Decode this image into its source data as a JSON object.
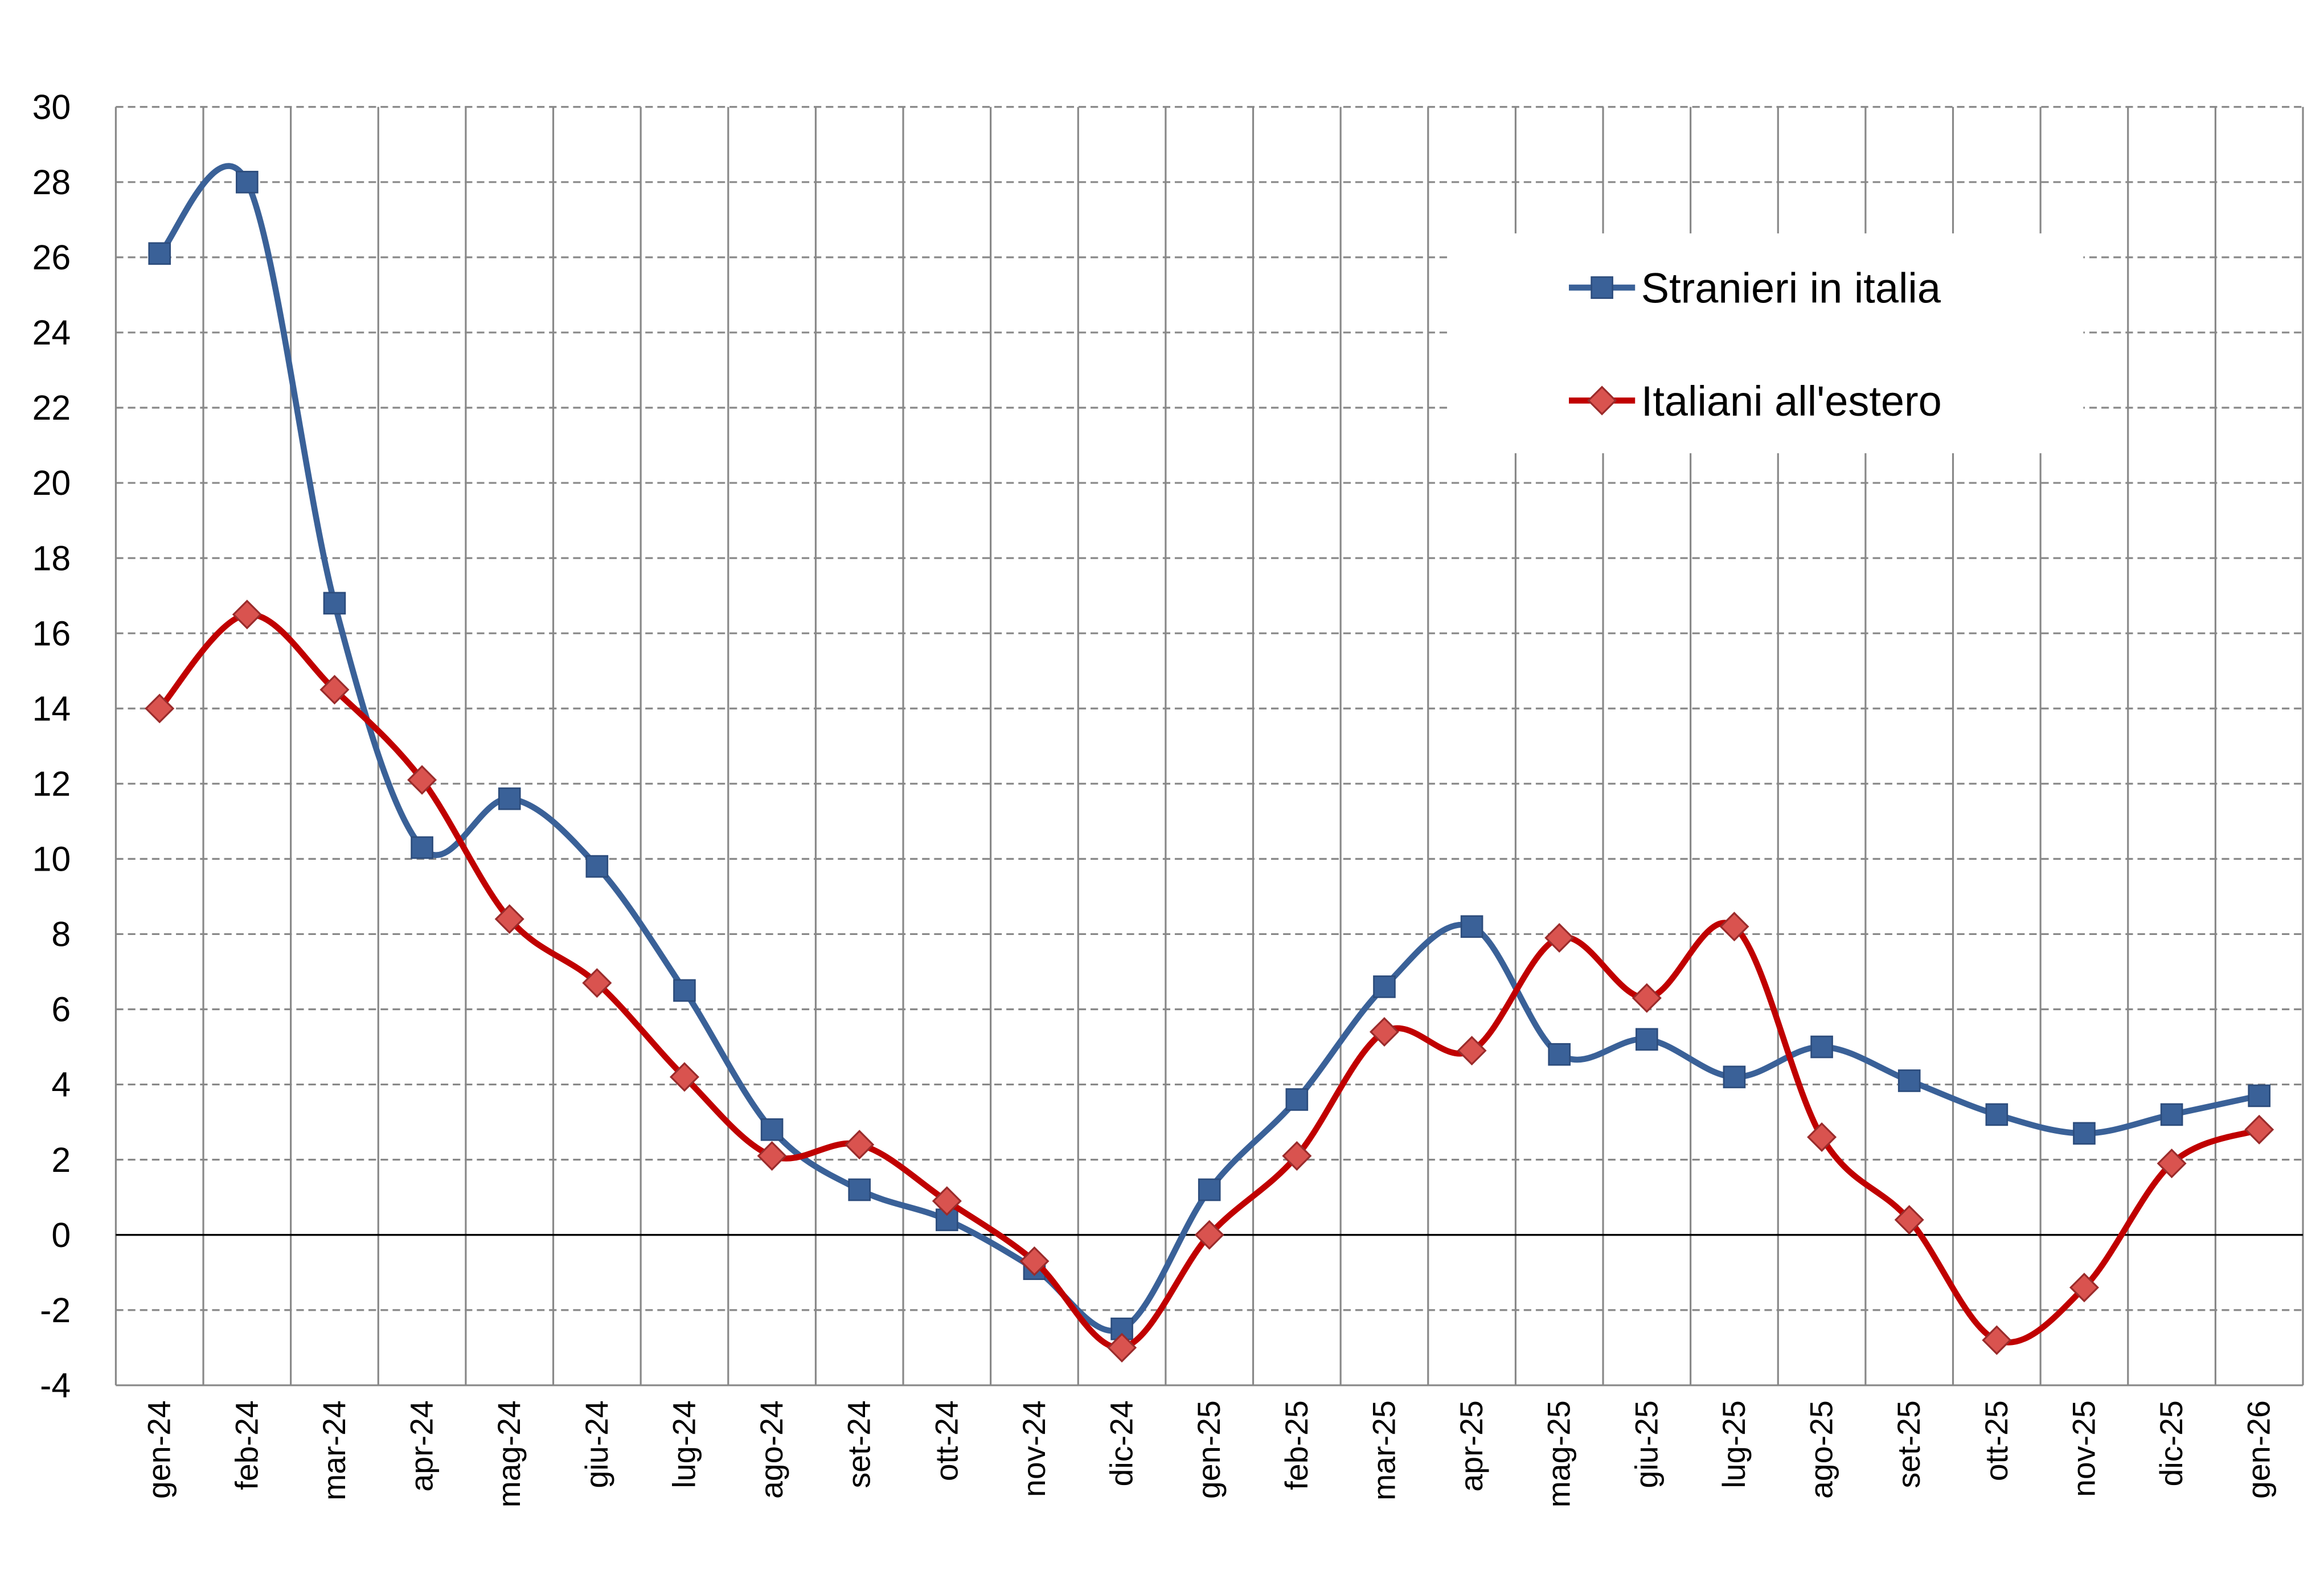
{
  "chart_data": {
    "type": "line",
    "categories": [
      "gen-24",
      "feb-24",
      "mar-24",
      "apr-24",
      "mag-24",
      "giu-24",
      "lug-24",
      "ago-24",
      "set-24",
      "ott-24",
      "nov-24",
      "dic-24",
      "gen-25",
      "feb-25",
      "mar-25",
      "apr-25",
      "mag-25",
      "giu-25",
      "lug-25",
      "ago-25",
      "set-25",
      "ott-25",
      "nov-25",
      "dic-25",
      "gen-26"
    ],
    "ylim": [
      -4,
      30
    ],
    "yticks": [
      -4,
      -2,
      0,
      2,
      4,
      6,
      8,
      10,
      12,
      14,
      16,
      18,
      20,
      22,
      24,
      26,
      28,
      30
    ],
    "grid": true,
    "smooth": true,
    "legend_position": "top-right",
    "series": [
      {
        "name": "Stranieri in italia",
        "color": "#3A6198",
        "marker": "square",
        "values": [
          26.1,
          28.0,
          16.8,
          10.3,
          11.6,
          9.8,
          6.5,
          2.8,
          1.2,
          0.4,
          -0.9,
          -2.5,
          1.2,
          3.6,
          6.6,
          8.2,
          4.8,
          5.2,
          4.2,
          5.0,
          4.1,
          3.2,
          2.7,
          3.2,
          3.7
        ]
      },
      {
        "name": "Italiani all'estero",
        "color": "#C00000",
        "marker": "diamond",
        "values": [
          14.0,
          16.5,
          14.5,
          12.1,
          8.4,
          6.7,
          4.2,
          2.1,
          2.4,
          0.9,
          -0.7,
          -3.0,
          0.0,
          2.1,
          5.4,
          4.9,
          7.9,
          6.3,
          8.2,
          2.6,
          0.4,
          -2.8,
          -1.4,
          1.9,
          2.8
        ]
      }
    ]
  }
}
